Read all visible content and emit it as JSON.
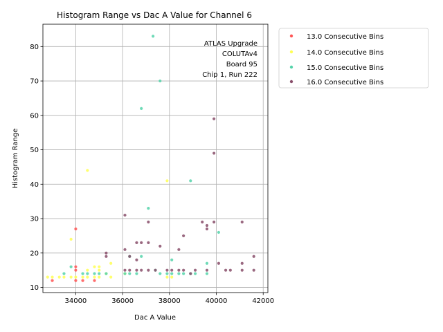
{
  "chart_data": {
    "type": "scatter",
    "title": "Histogram Range vs Dac A Value for Channel 6",
    "xlabel": "Dac A Value",
    "ylabel": "Histogram Range",
    "xlim": [
      32600,
      42200
    ],
    "ylim": [
      8.5,
      86.5
    ],
    "xticks": [
      34000,
      36000,
      38000,
      40000,
      42000
    ],
    "yticks": [
      10,
      20,
      30,
      40,
      50,
      60,
      70,
      80
    ],
    "grid": true,
    "legend_placement": "outside-top-right",
    "annotation": [
      "ATLAS Upgrade",
      "COLUTAv4",
      "Board 95",
      "Chip 1, Run 222"
    ],
    "series": [
      {
        "name": "13.0 Consecutive Bins",
        "color": "#ff5555",
        "points": [
          [
            33000,
            12
          ],
          [
            34000,
            16
          ],
          [
            34000,
            27
          ],
          [
            34300,
            12
          ],
          [
            34800,
            12
          ],
          [
            34000,
            12
          ],
          [
            34000,
            15
          ]
        ]
      },
      {
        "name": "14.0 Consecutive Bins",
        "color": "#ffff55",
        "points": [
          [
            32800,
            13
          ],
          [
            33000,
            13
          ],
          [
            33300,
            13
          ],
          [
            33500,
            13
          ],
          [
            33800,
            13
          ],
          [
            34000,
            13
          ],
          [
            33800,
            24
          ],
          [
            34300,
            13
          ],
          [
            34500,
            13
          ],
          [
            34500,
            15
          ],
          [
            34500,
            44
          ],
          [
            34800,
            13
          ],
          [
            34800,
            16
          ],
          [
            35000,
            13
          ],
          [
            35000,
            15
          ],
          [
            35000,
            16
          ],
          [
            35300,
            14
          ],
          [
            35500,
            13
          ],
          [
            35500,
            17
          ],
          [
            36100,
            14
          ],
          [
            37900,
            41
          ],
          [
            37900,
            13
          ],
          [
            38100,
            13
          ]
        ]
      },
      {
        "name": "15.0 Consecutive Bins",
        "color": "#55d3aa",
        "points": [
          [
            33500,
            14
          ],
          [
            33800,
            16
          ],
          [
            34300,
            14
          ],
          [
            34500,
            14
          ],
          [
            34800,
            14
          ],
          [
            35000,
            14
          ],
          [
            35300,
            14
          ],
          [
            36100,
            14
          ],
          [
            36300,
            14
          ],
          [
            36300,
            19
          ],
          [
            36600,
            14
          ],
          [
            36800,
            19
          ],
          [
            36800,
            62
          ],
          [
            37100,
            33
          ],
          [
            37300,
            83
          ],
          [
            37400,
            15
          ],
          [
            37600,
            70
          ],
          [
            37600,
            14
          ],
          [
            37900,
            14
          ],
          [
            38100,
            14
          ],
          [
            38100,
            18
          ],
          [
            38400,
            14
          ],
          [
            38600,
            14
          ],
          [
            38900,
            14
          ],
          [
            38900,
            41
          ],
          [
            39100,
            14
          ],
          [
            39600,
            14
          ],
          [
            39600,
            17
          ],
          [
            40100,
            26
          ]
        ]
      },
      {
        "name": "16.0 Consecutive Bins",
        "color": "#884e6a",
        "points": [
          [
            35300,
            19
          ],
          [
            35300,
            20
          ],
          [
            36100,
            15
          ],
          [
            36100,
            21
          ],
          [
            36100,
            31
          ],
          [
            36300,
            15
          ],
          [
            36300,
            19
          ],
          [
            36600,
            15
          ],
          [
            36600,
            18
          ],
          [
            36600,
            23
          ],
          [
            36800,
            15
          ],
          [
            36800,
            23
          ],
          [
            37100,
            15
          ],
          [
            37100,
            23
          ],
          [
            37100,
            29
          ],
          [
            37400,
            15
          ],
          [
            37600,
            22
          ],
          [
            37900,
            15
          ],
          [
            38100,
            15
          ],
          [
            38400,
            15
          ],
          [
            38400,
            21
          ],
          [
            38600,
            15
          ],
          [
            38600,
            25
          ],
          [
            38900,
            14
          ],
          [
            39100,
            15
          ],
          [
            39400,
            29
          ],
          [
            39600,
            15
          ],
          [
            39600,
            27
          ],
          [
            39600,
            28
          ],
          [
            39900,
            29
          ],
          [
            39900,
            49
          ],
          [
            39900,
            59
          ],
          [
            40100,
            17
          ],
          [
            40400,
            15
          ],
          [
            40600,
            15
          ],
          [
            41100,
            15
          ],
          [
            41100,
            17
          ],
          [
            41100,
            29
          ],
          [
            41600,
            15
          ],
          [
            41600,
            19
          ]
        ]
      }
    ]
  }
}
